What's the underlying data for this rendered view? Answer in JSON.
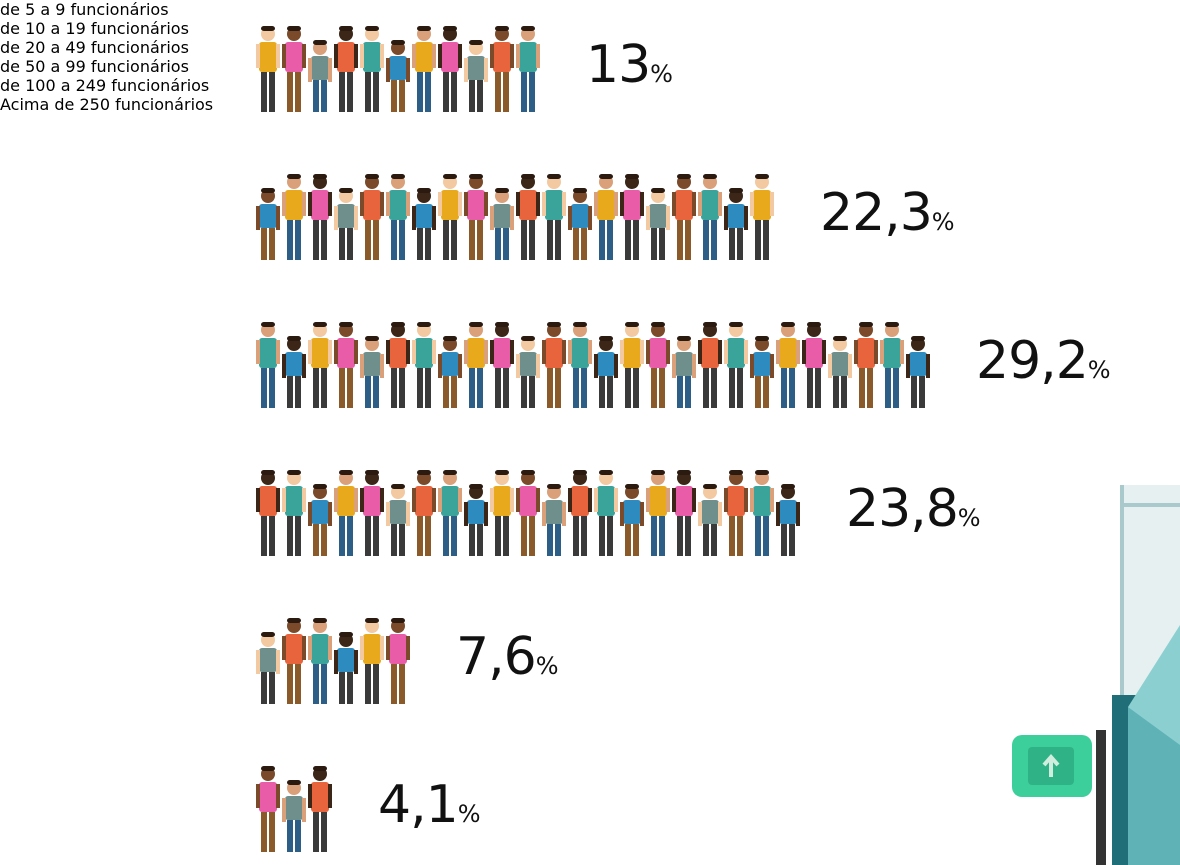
{
  "chart_data": {
    "type": "pictogram",
    "categories": [
      "de 5 a 9 funcionários",
      "de 10 a 19 funcionários",
      "de 20 a 49 funcionários",
      "de 50 a 99 funcionários",
      "de 100 a 249 funcionários",
      "Acima de 250 funcionários"
    ],
    "values": [
      13,
      22.3,
      29.2,
      23.8,
      7.6,
      4.1
    ],
    "value_labels": [
      "13%",
      "22,3%",
      "29,2%",
      "23,8%",
      "7,6%",
      "4,1%"
    ],
    "colors": [
      "#e8643c",
      "#3aa39a",
      "#2e8bc0",
      "#e8a91c",
      "#e85ca8",
      "#6f8f8c"
    ]
  }
}
